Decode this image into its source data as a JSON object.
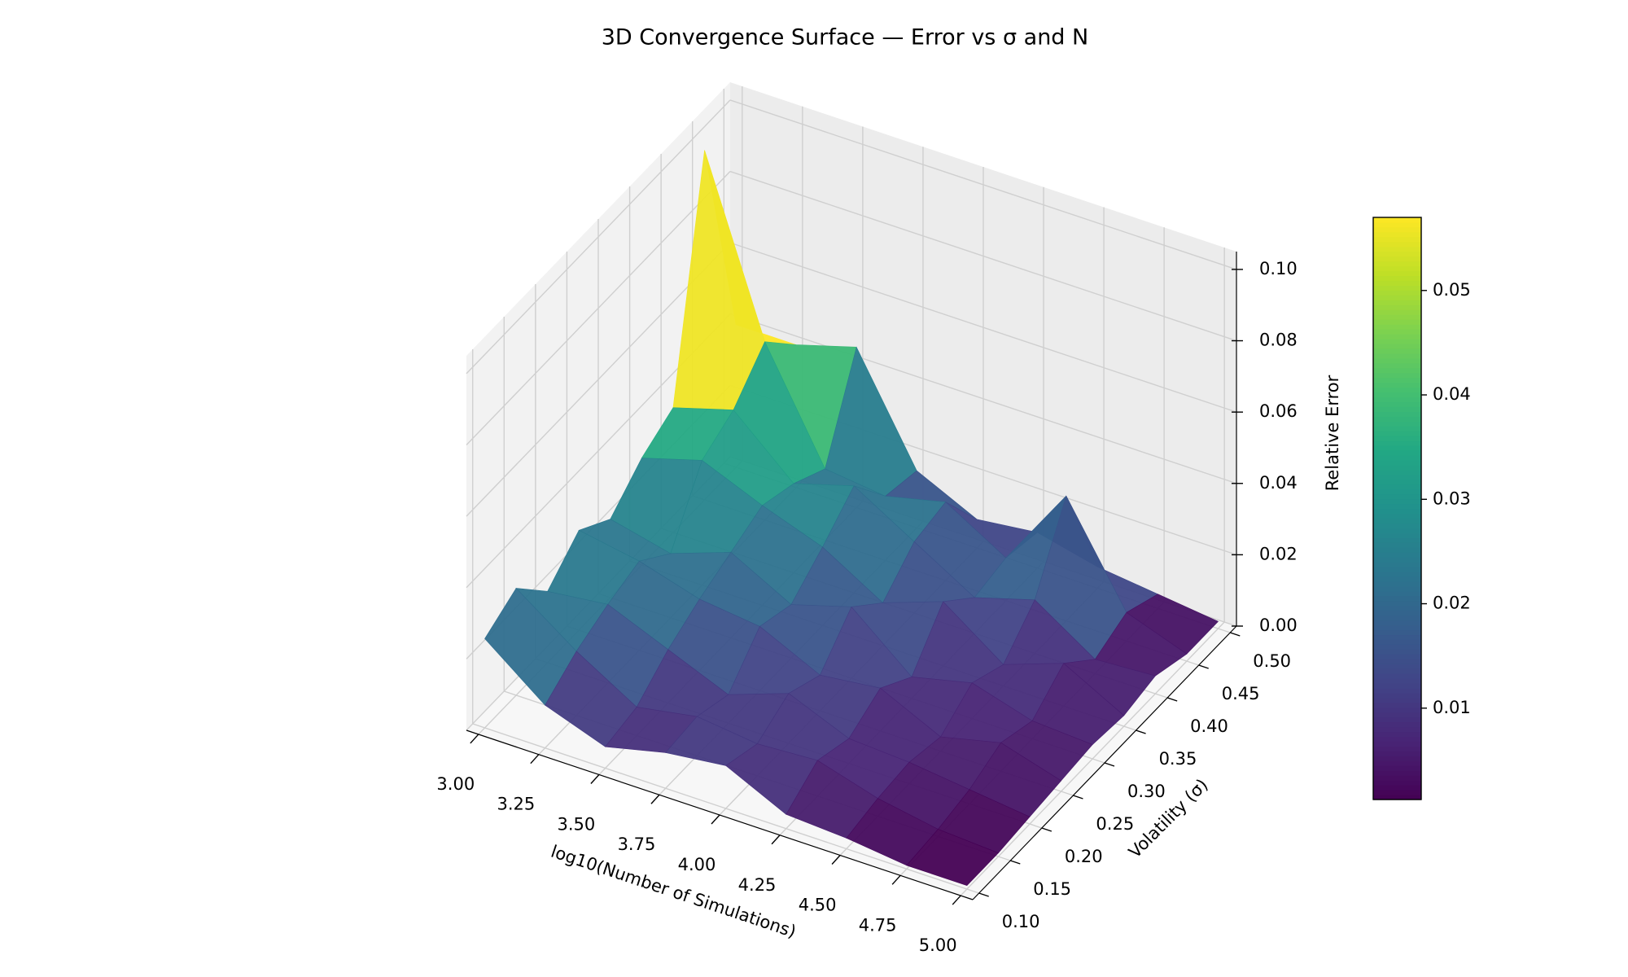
{
  "chart_data": {
    "type": "surface3d",
    "title": "3D Convergence Surface — Error vs σ and N",
    "xlabel": "log10(Number of Simulations)",
    "ylabel": "Volatility (σ)",
    "zlabel": "Relative Error",
    "x": [
      3.0,
      3.25,
      3.5,
      3.75,
      4.0,
      4.25,
      4.5,
      4.75,
      5.0
    ],
    "y": [
      0.1,
      0.15,
      0.2,
      0.25,
      0.3,
      0.35,
      0.4,
      0.45,
      0.5
    ],
    "z": [
      [
        0.025,
        0.012,
        0.006,
        0.01,
        0.012,
        0.004,
        0.003,
        0.001,
        0.001
      ],
      [
        0.03,
        0.018,
        0.008,
        0.011,
        0.009,
        0.01,
        0.005,
        0.002,
        0.001
      ],
      [
        0.02,
        0.022,
        0.015,
        0.008,
        0.014,
        0.007,
        0.006,
        0.004,
        0.002
      ],
      [
        0.028,
        0.025,
        0.02,
        0.018,
        0.01,
        0.012,
        0.004,
        0.008,
        0.003
      ],
      [
        0.022,
        0.018,
        0.024,
        0.015,
        0.02,
        0.006,
        0.01,
        0.005,
        0.004
      ],
      [
        0.03,
        0.035,
        0.028,
        0.022,
        0.012,
        0.018,
        0.006,
        0.012,
        0.003
      ],
      [
        0.035,
        0.04,
        0.025,
        0.03,
        0.02,
        0.01,
        0.015,
        0.004,
        0.005
      ],
      [
        0.098,
        0.05,
        0.02,
        0.018,
        0.022,
        0.012,
        0.035,
        0.008,
        0.002
      ],
      [
        0.04,
        0.04,
        0.045,
        0.016,
        0.008,
        0.01,
        0.006,
        0.004,
        0.002
      ]
    ],
    "xlim": [
      2.95,
      5.05
    ],
    "ylim": [
      0.09,
      0.51
    ],
    "zlim": [
      0,
      0.105
    ],
    "xticks": [
      {
        "value": 3.0,
        "label": "3.00"
      },
      {
        "value": 3.25,
        "label": "3.25"
      },
      {
        "value": 3.5,
        "label": "3.50"
      },
      {
        "value": 3.75,
        "label": "3.75"
      },
      {
        "value": 4.0,
        "label": "4.00"
      },
      {
        "value": 4.25,
        "label": "4.25"
      },
      {
        "value": 4.5,
        "label": "4.50"
      },
      {
        "value": 4.75,
        "label": "4.75"
      },
      {
        "value": 5.0,
        "label": "5.00"
      }
    ],
    "yticks": [
      {
        "value": 0.1,
        "label": "0.10"
      },
      {
        "value": 0.15,
        "label": "0.15"
      },
      {
        "value": 0.2,
        "label": "0.20"
      },
      {
        "value": 0.25,
        "label": "0.25"
      },
      {
        "value": 0.3,
        "label": "0.30"
      },
      {
        "value": 0.35,
        "label": "0.35"
      },
      {
        "value": 0.4,
        "label": "0.40"
      },
      {
        "value": 0.45,
        "label": "0.45"
      },
      {
        "value": 0.5,
        "label": "0.50"
      }
    ],
    "zticks": [
      {
        "value": 0,
        "label": "0.00"
      },
      0.02,
      0.04,
      0.06,
      0.08,
      {
        "value": 0.1,
        "label": "0.10"
      }
    ],
    "colormap": "viridis",
    "clim": [
      0.00125,
      0.057
    ],
    "colorbar_ticks": [
      0.01,
      0.02,
      0.03,
      0.04,
      0.05
    ],
    "grid": true
  }
}
